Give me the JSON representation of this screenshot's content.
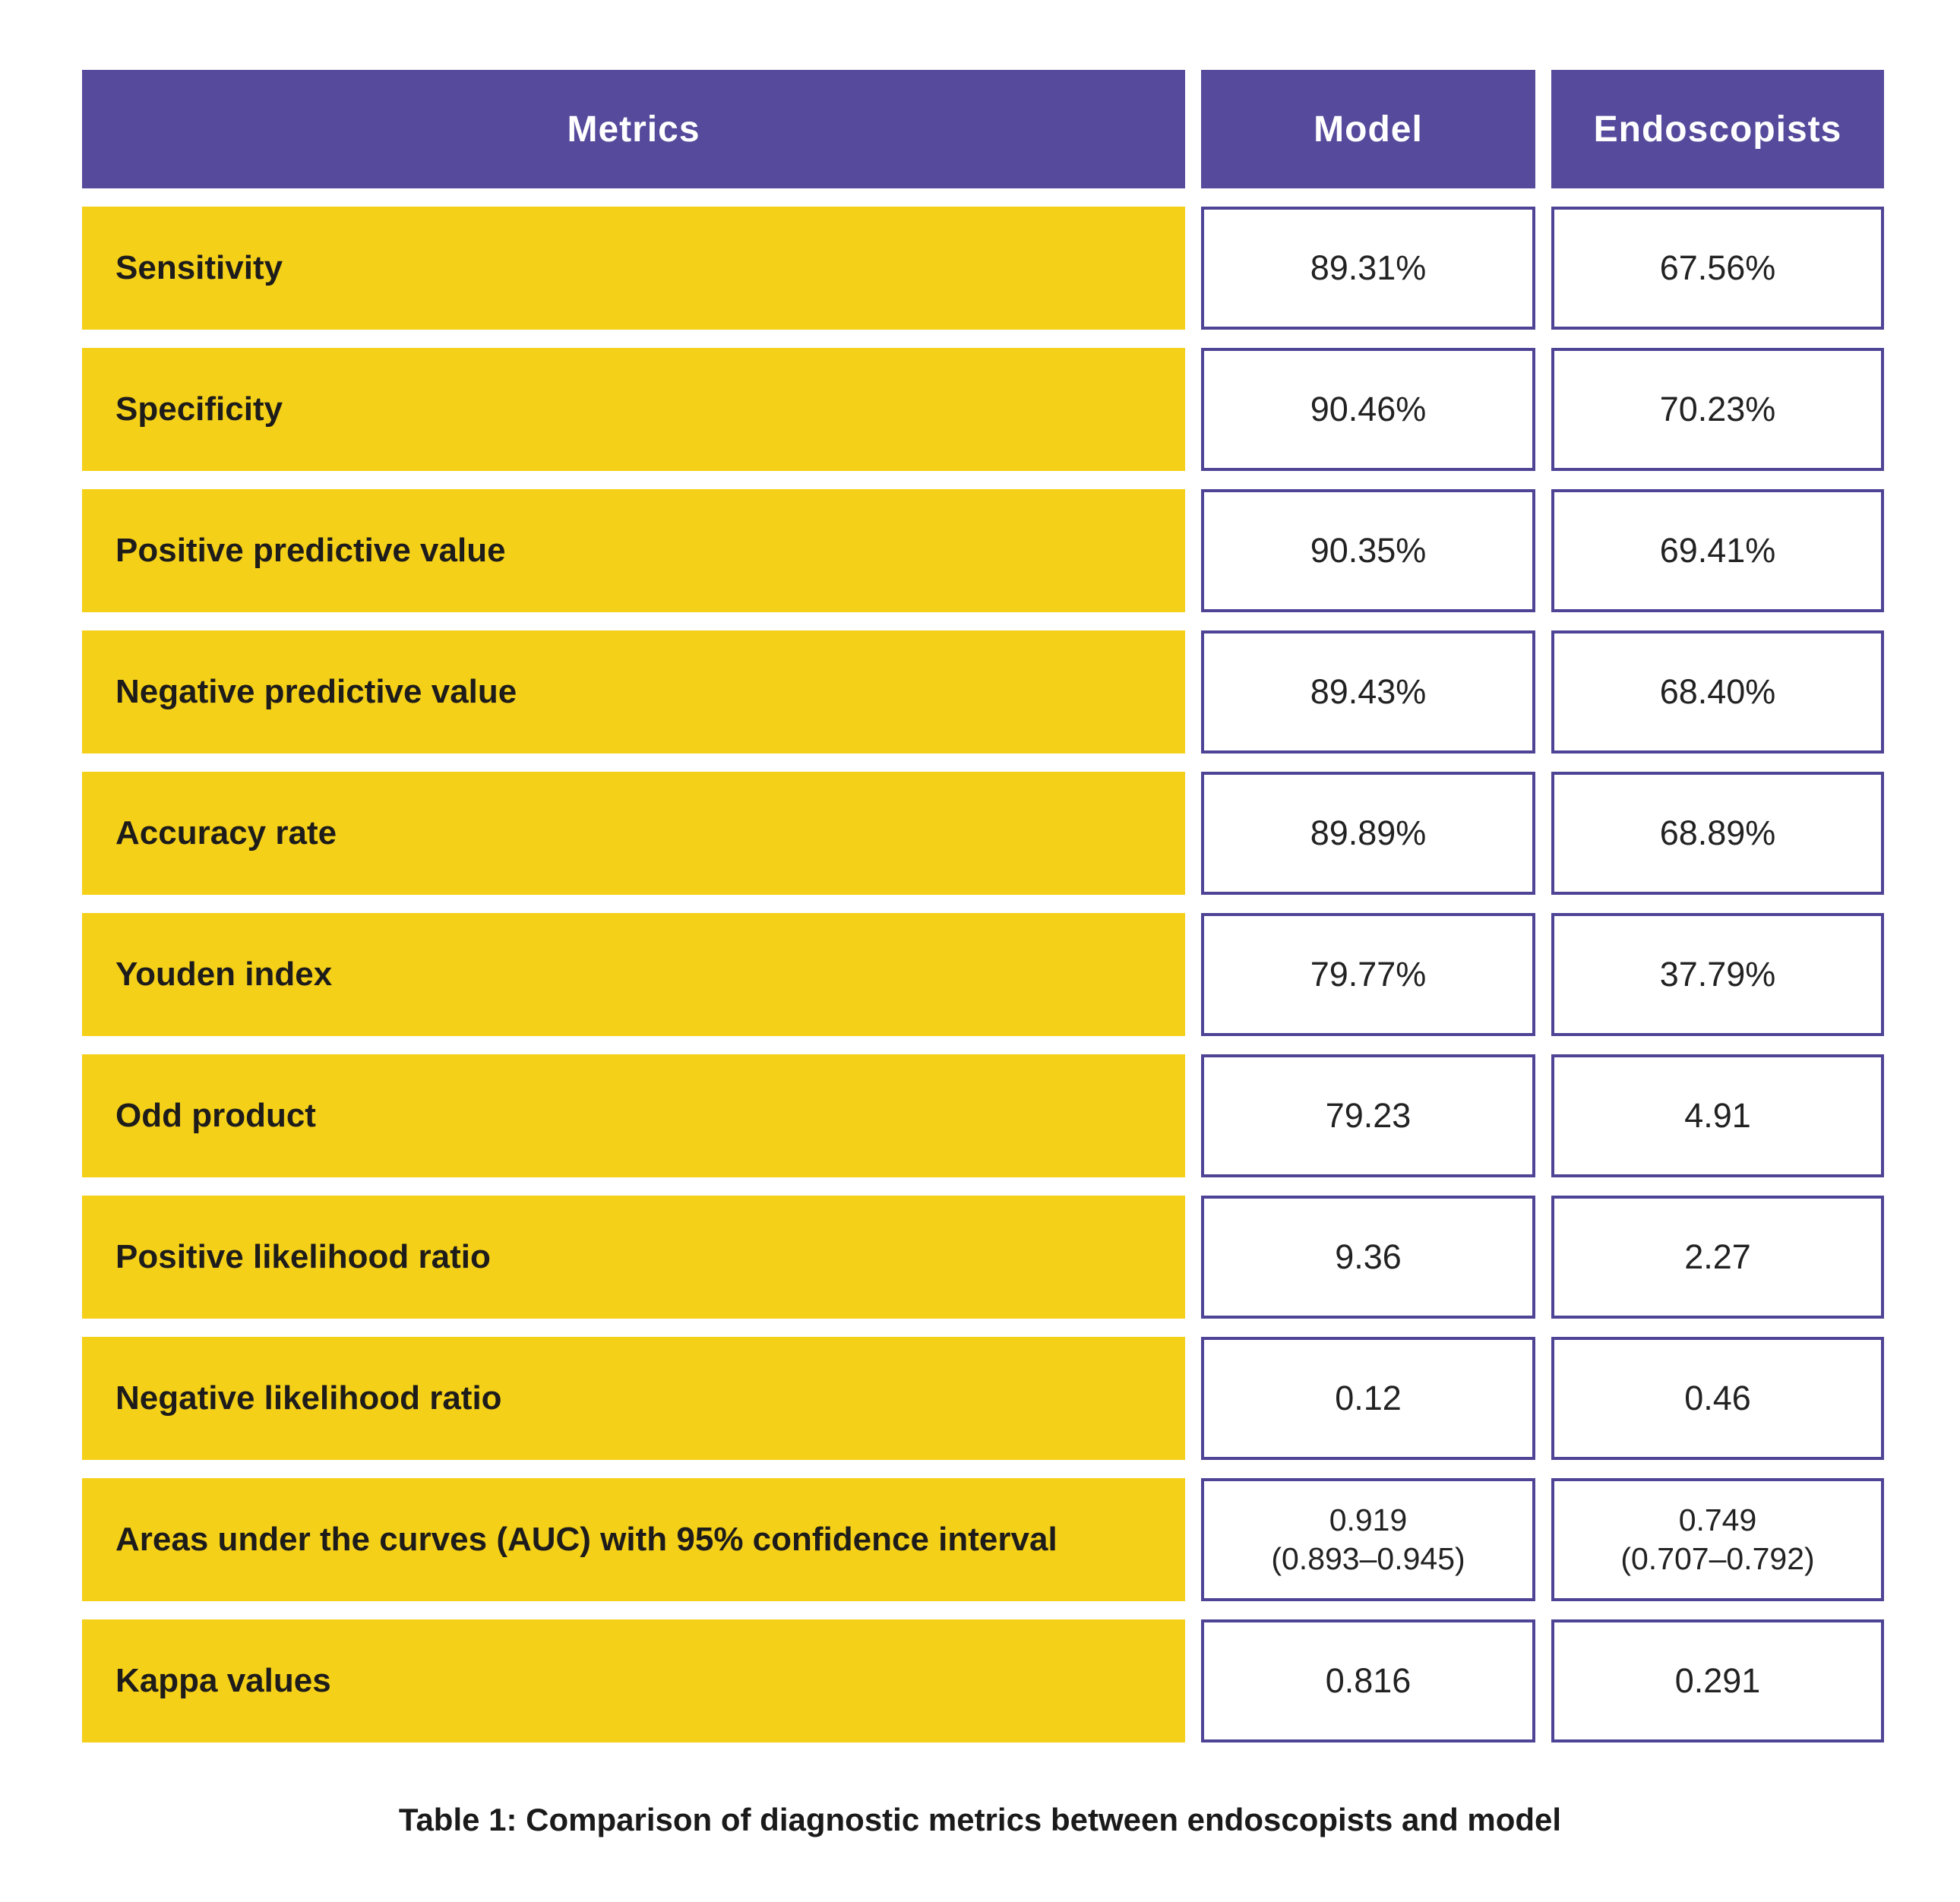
{
  "colors": {
    "header_purple": "#564A9C",
    "cell_border_purple": "#4E4496",
    "label_yellow": "#F5D019",
    "label_text": "#1D1C1A",
    "value_text": "#222222",
    "background": "#FFFFFF"
  },
  "table": {
    "header": {
      "metrics": "Metrics",
      "model": "Model",
      "endoscopists": "Endoscopists"
    },
    "rows": [
      {
        "metric": "Sensitivity",
        "model": "89.31%",
        "endoscopists": "67.56%"
      },
      {
        "metric": "Specificity",
        "model": "90.46%",
        "endoscopists": "70.23%"
      },
      {
        "metric": "Positive predictive value",
        "model": "90.35%",
        "endoscopists": "69.41%"
      },
      {
        "metric": "Negative predictive value",
        "model": "89.43%",
        "endoscopists": "68.40%"
      },
      {
        "metric": "Accuracy rate",
        "model": "89.89%",
        "endoscopists": "68.89%"
      },
      {
        "metric": "Youden index",
        "model": "79.77%",
        "endoscopists": "37.79%"
      },
      {
        "metric": "Odd product",
        "model": "79.23",
        "endoscopists": "4.91"
      },
      {
        "metric": "Positive likelihood ratio",
        "model": "9.36",
        "endoscopists": "2.27"
      },
      {
        "metric": "Negative likelihood ratio",
        "model": "0.12",
        "endoscopists": "0.46"
      },
      {
        "metric": "Areas under the curves (AUC) with 95% confidence interval",
        "model": "0.919\n(0.893–0.945)",
        "endoscopists": "0.749\n(0.707–0.792)"
      },
      {
        "metric": "Kappa values",
        "model": "0.816",
        "endoscopists": "0.291"
      }
    ]
  },
  "caption": "Table 1: Comparison of diagnostic metrics between endoscopists and model",
  "chart_data": {
    "type": "table",
    "title": "Table 1: Comparison of diagnostic metrics between endoscopists and model",
    "columns": [
      "Metrics",
      "Model",
      "Endoscopists"
    ],
    "categories": [
      "Sensitivity",
      "Specificity",
      "Positive predictive value",
      "Negative predictive value",
      "Accuracy rate",
      "Youden index",
      "Odd product",
      "Positive likelihood ratio",
      "Negative likelihood ratio",
      "Areas under the curves (AUC) with 95% confidence interval",
      "Kappa values"
    ],
    "series": [
      {
        "name": "Model",
        "values": [
          "89.31%",
          "90.46%",
          "90.35%",
          "89.43%",
          "89.89%",
          "79.77%",
          "79.23",
          "9.36",
          "0.12",
          "0.919 (0.893–0.945)",
          "0.816"
        ]
      },
      {
        "name": "Endoscopists",
        "values": [
          "67.56%",
          "70.23%",
          "69.41%",
          "68.40%",
          "68.89%",
          "37.79%",
          "4.91",
          "2.27",
          "0.46",
          "0.749 (0.707–0.792)",
          "0.291"
        ]
      }
    ]
  }
}
